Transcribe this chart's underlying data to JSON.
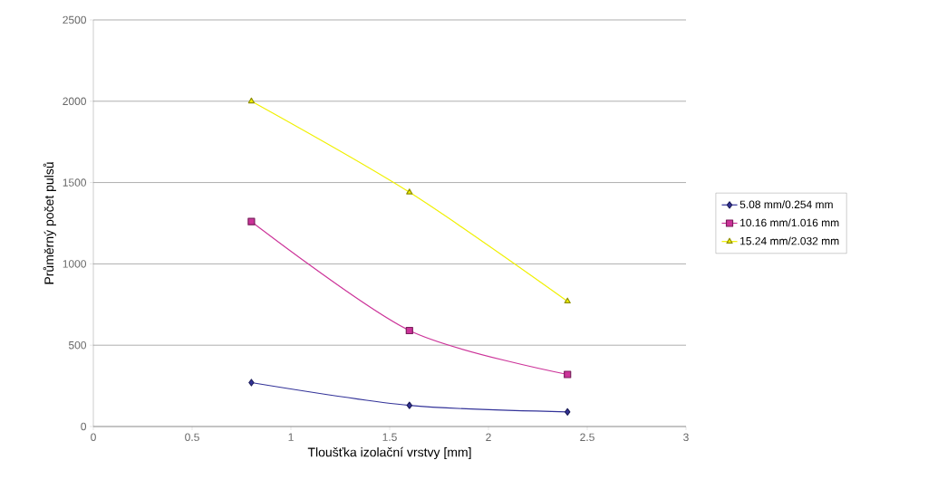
{
  "chart_data": {
    "type": "line",
    "xlabel": "Tloušťka izolační vrstvy [mm]",
    "ylabel": "Průměrný počet pulsů",
    "x": [
      0.8,
      1.6,
      2.4
    ],
    "series": [
      {
        "name": "5.08 mm/0.254 mm",
        "color": "#333399",
        "marker": "diamond",
        "values": [
          270,
          130,
          90
        ]
      },
      {
        "name": "10.16 mm/1.016 mm",
        "color": "#cc3399",
        "marker": "square",
        "values": [
          1260,
          590,
          320
        ]
      },
      {
        "name": "15.24 mm/2.032 mm",
        "color": "#f0f000",
        "marker": "triangle",
        "values": [
          2000,
          1440,
          770
        ]
      }
    ],
    "xlim": [
      0,
      3
    ],
    "xticks": [
      0,
      0.5,
      1,
      1.5,
      2,
      2.5,
      3
    ],
    "ylim": [
      0,
      2500
    ],
    "yticks": [
      0,
      500,
      1000,
      1500,
      2000,
      2500
    ],
    "grid": "y",
    "legend": "right"
  }
}
